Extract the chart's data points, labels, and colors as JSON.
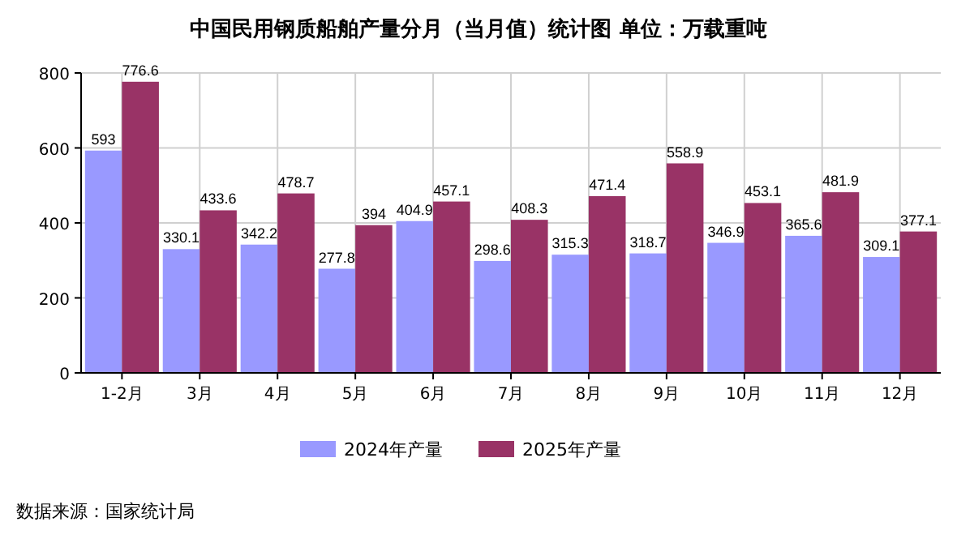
{
  "chart_data": {
    "type": "bar",
    "title": "中国民用钢质船舶产量分月（当月值）统计图 单位：万载重吨",
    "categories": [
      "1-2月",
      "3月",
      "4月",
      "5月",
      "6月",
      "7月",
      "8月",
      "9月",
      "10月",
      "11月",
      "12月"
    ],
    "series": [
      {
        "name": "2024年产量",
        "color": "#9999ff",
        "values": [
          593,
          330.1,
          342.2,
          277.8,
          404.9,
          298.6,
          315.3,
          318.7,
          346.9,
          365.6,
          309.1
        ]
      },
      {
        "name": "2025年产量",
        "color": "#993366",
        "values": [
          776.6,
          433.6,
          478.7,
          394,
          457.1,
          408.3,
          471.4,
          558.9,
          453.1,
          481.9,
          377.1
        ]
      }
    ],
    "ylim": [
      0,
      800
    ],
    "yticks": [
      0,
      200,
      400,
      600,
      800
    ],
    "grid": true,
    "legend": "bottom",
    "data_labels": true,
    "annotations": [
      "数据来源：国家统计局"
    ]
  }
}
